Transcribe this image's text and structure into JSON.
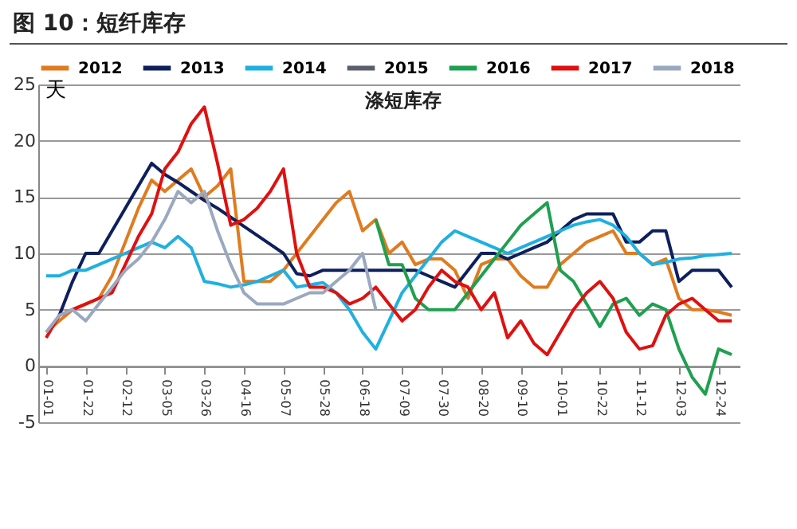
{
  "chart_data": {
    "type": "line",
    "title": "图 10：短纤库存",
    "subtitle": "涤短库存",
    "ylabel": "天",
    "categories": [
      "01-01",
      null,
      null,
      "01-22",
      null,
      null,
      "02-12",
      null,
      null,
      "03-05",
      null,
      null,
      "03-26",
      null,
      null,
      "04-16",
      null,
      null,
      "05-07",
      null,
      null,
      "05-28",
      null,
      null,
      "06-18",
      null,
      null,
      "07-09",
      null,
      null,
      "07-30",
      null,
      null,
      "08-20",
      null,
      null,
      "09-10",
      null,
      null,
      "10-01",
      null,
      null,
      "10-22",
      null,
      null,
      "11-12",
      null,
      null,
      "12-03",
      null,
      null,
      "12-24",
      null
    ],
    "series": [
      {
        "name": "2012",
        "color": "#e07b1f",
        "values": [
          3,
          4,
          5,
          5.5,
          6,
          8,
          11,
          14,
          16.5,
          15.5,
          16.5,
          17.5,
          15,
          16,
          17.5,
          7.5,
          7.5,
          7.5,
          8.5,
          10,
          11.5,
          13,
          14.5,
          15.5,
          12,
          13,
          10,
          11,
          9,
          9.5,
          9.5,
          8.5,
          6,
          9,
          9.5,
          9.5,
          8,
          7,
          7,
          9,
          10,
          11,
          11.5,
          12,
          10,
          10,
          9,
          9.5,
          6,
          5,
          5,
          4.8,
          4.5
        ]
      },
      {
        "name": "2013",
        "color": "#0d1f5c",
        "values": [
          null,
          4.5,
          7.5,
          10,
          10,
          12,
          14,
          16,
          18,
          17,
          16.3,
          15.5,
          14.7,
          14,
          13.2,
          12.4,
          11.6,
          10.8,
          10,
          8.2,
          8,
          8.5,
          8.5,
          8.5,
          8.5,
          8.5,
          8.5,
          8.5,
          8.5,
          8,
          7.5,
          7,
          8.5,
          10,
          10,
          9.5,
          10,
          10.5,
          11,
          12,
          13,
          13.5,
          13.5,
          13.5,
          11,
          11,
          12,
          12,
          7.5,
          8.5,
          8.5,
          8.5,
          7
        ]
      },
      {
        "name": "2014",
        "color": "#1fb0e0",
        "values": [
          8,
          8,
          8.5,
          8.5,
          9,
          9.5,
          10,
          10.5,
          11,
          10.5,
          11.5,
          10.5,
          7.5,
          7.3,
          7,
          7.2,
          7.5,
          8,
          8.5,
          7,
          7.2,
          7.4,
          6.5,
          5,
          3,
          1.5,
          4,
          6.5,
          8,
          9.5,
          11,
          12,
          11.5,
          11,
          10.5,
          10,
          10.5,
          11,
          11.5,
          12,
          12.5,
          12.8,
          13,
          12.5,
          11.5,
          10,
          9,
          9.2,
          9.5,
          9.6,
          9.8,
          9.9,
          10
        ]
      },
      {
        "name": "2015",
        "color": "#5a5f70",
        "values": [
          null,
          null,
          null,
          null,
          null,
          null,
          null,
          null,
          null,
          null,
          null,
          null,
          null,
          null,
          null,
          null,
          null,
          null,
          null,
          null,
          null,
          null,
          null,
          null,
          null,
          null,
          null,
          null,
          null,
          null,
          null,
          null,
          null,
          null,
          null,
          null,
          null,
          null,
          null,
          null,
          null,
          null,
          null,
          null,
          null,
          null,
          null,
          null,
          null,
          null,
          null,
          null,
          null
        ]
      },
      {
        "name": "2016",
        "color": "#1fa050",
        "values": [
          null,
          null,
          null,
          null,
          null,
          null,
          null,
          null,
          null,
          null,
          null,
          null,
          null,
          null,
          null,
          null,
          null,
          null,
          null,
          null,
          null,
          null,
          null,
          null,
          null,
          13,
          9,
          9,
          6,
          5,
          5,
          5,
          6.5,
          8,
          9.5,
          11,
          12.5,
          13.5,
          14.5,
          8.5,
          7.5,
          5.5,
          3.5,
          5.5,
          6,
          4.5,
          5.5,
          5,
          1.5,
          -1,
          -2.5,
          1.5,
          1
        ]
      },
      {
        "name": "2017",
        "color": "#e01010",
        "values": [
          2.5,
          4.5,
          5,
          5.5,
          6,
          6.5,
          9,
          11.5,
          13.5,
          17.5,
          19,
          21.5,
          23,
          18,
          12.5,
          13,
          14,
          15.5,
          17.5,
          10,
          7,
          7,
          6.5,
          5.5,
          6,
          7,
          5.5,
          4,
          5,
          7,
          8.5,
          7.5,
          7,
          5,
          6.5,
          2.5,
          4,
          2,
          1,
          3,
          5,
          6.5,
          7.5,
          6,
          3,
          1.5,
          1.8,
          4.5,
          5.5,
          6,
          5,
          4,
          4
        ]
      },
      {
        "name": "2018",
        "color": "#9aa8c0",
        "values": [
          3,
          4.5,
          5,
          4,
          5.5,
          7,
          8.5,
          9.5,
          11,
          13,
          15.5,
          14.5,
          15.5,
          12,
          9,
          6.5,
          5.5,
          5.5,
          5.5,
          6,
          6.5,
          6.5,
          7.5,
          8.5,
          10,
          5,
          null,
          null,
          null,
          null,
          null,
          null,
          null,
          null,
          null,
          null,
          null,
          null,
          null,
          null,
          null,
          null,
          null,
          null,
          null,
          null,
          null,
          null,
          null,
          null,
          null,
          null,
          null
        ]
      }
    ],
    "ylim": [
      -5,
      25
    ],
    "yticks": [
      -5,
      0,
      5,
      10,
      15,
      20,
      25
    ],
    "grid": "y",
    "legend": "top"
  }
}
